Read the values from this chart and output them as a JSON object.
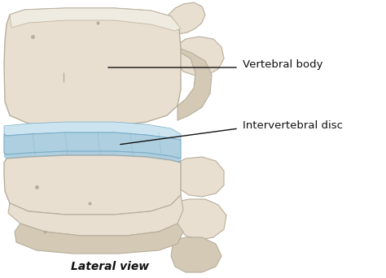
{
  "background_color": "#ffffff",
  "bone_color_main": "#e8dfd0",
  "bone_color_light": "#f0ebe0",
  "bone_color_shadow": "#b8ae9c",
  "bone_color_mid": "#d4c9b5",
  "disc_color_main": "#aecfe0",
  "disc_color_light": "#cce4f0",
  "disc_color_dark": "#7aaec8",
  "line_color": "#111111",
  "text_color": "#111111",
  "label_vertebral": "Vertebral body",
  "label_disc": "Intervertebral disc",
  "caption": "Lateral view",
  "figsize": [
    4.74,
    3.42
  ],
  "dpi": 100
}
